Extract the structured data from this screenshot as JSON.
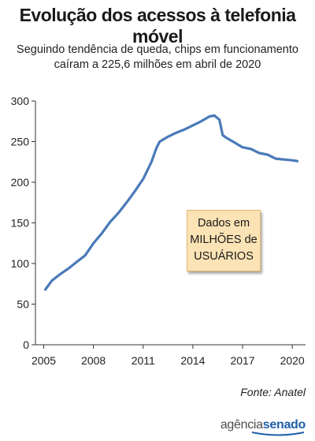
{
  "title": "Evolução dos acessos à telefonia móvel",
  "subtitle_line1": "Seguindo tendência de queda, chips em funcionamento",
  "subtitle_line2": "caíram a 225,6 milhões em abril de 2020",
  "note": {
    "line1": "Dados em",
    "line2": "MILHÕES de",
    "line3": "USUÁRIOS"
  },
  "source": "Fonte: Anatel",
  "logo": {
    "part1": "agência",
    "part2": "senado"
  },
  "colors": {
    "line": "#4a7ab8",
    "note_bg": "#fbe3b5",
    "brand": "#1f5fa8"
  },
  "chart_data": {
    "type": "line",
    "title": "Evolução dos acessos à telefonia móvel",
    "ylim": [
      0,
      300
    ],
    "xlim": [
      2004.5,
      2020.8
    ],
    "y_ticks": [
      0,
      50,
      100,
      150,
      200,
      250,
      300
    ],
    "x_ticks": [
      2005,
      2008,
      2011,
      2014,
      2017,
      2020
    ],
    "y_tick_labels": [
      "0",
      "50",
      "100",
      "150",
      "200",
      "250",
      "300"
    ],
    "x_tick_labels": [
      "2005",
      "2008",
      "2011",
      "2014",
      "2017",
      "2020"
    ],
    "grid": false,
    "series": [
      {
        "x": [
          2005.1,
          2005.5,
          2006.0,
          2006.5,
          2007.0,
          2007.5,
          2008.0,
          2008.5,
          2009.0,
          2009.5,
          2010.0,
          2010.5,
          2011.0,
          2011.5,
          2011.8,
          2012.0,
          2012.5,
          2013.0,
          2013.5,
          2014.0,
          2014.5,
          2015.0,
          2015.3,
          2015.6,
          2015.8,
          2016.0,
          2016.5,
          2017.0,
          2017.5,
          2018.0,
          2018.5,
          2019.0,
          2019.5,
          2020.0,
          2020.3
        ],
        "y": [
          68,
          79,
          87,
          94,
          102,
          110,
          125,
          137,
          151,
          162,
          175,
          189,
          204,
          225,
          242,
          250,
          256,
          261,
          265,
          270,
          275,
          281,
          282,
          277,
          258,
          255,
          249,
          243,
          241,
          236,
          234,
          229,
          228,
          227,
          226
        ]
      }
    ]
  }
}
